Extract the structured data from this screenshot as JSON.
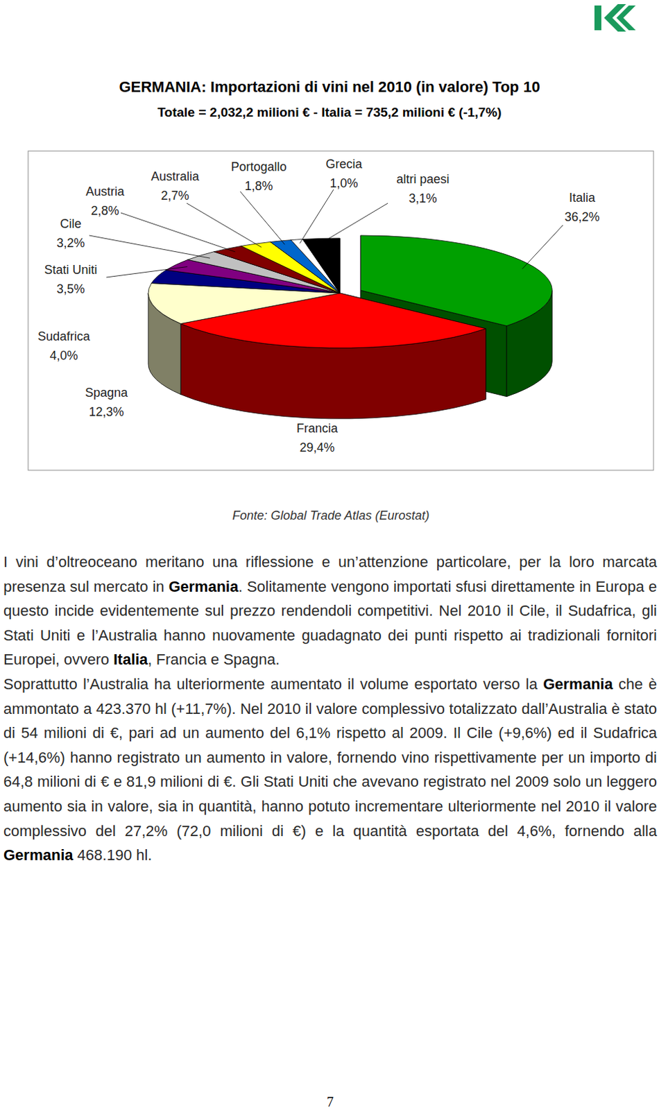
{
  "chart_data": {
    "type": "pie",
    "title": "GERMANIA: Importazioni di vini nel 2010 (in valore) Top 10",
    "subtitle": "Totale = 2,032,2 milioni € - Italia = 735,2 milioni € (-1,7%)",
    "categories": [
      "Italia",
      "Francia",
      "Spagna",
      "Sudafrica",
      "Stati Uniti",
      "Cile",
      "Austria",
      "Australia",
      "Portogallo",
      "Grecia",
      "altri paesi"
    ],
    "values": [
      36.2,
      29.4,
      12.3,
      4.0,
      3.5,
      3.2,
      2.8,
      2.7,
      1.8,
      1.0,
      3.1
    ],
    "value_labels": [
      "36,2%",
      "29,4%",
      "12,3%",
      "4,0%",
      "3,5%",
      "3,2%",
      "2,8%",
      "2,7%",
      "1,8%",
      "1,0%",
      "3,1%"
    ],
    "colors": [
      "#00a000",
      "#ff0000",
      "#ffffcc",
      "#000080",
      "#800080",
      "#c0c0c0",
      "#800000",
      "#ffff00",
      "#0066cc",
      "#ffffff",
      "#000000"
    ],
    "data_labels": true
  },
  "source": "Fonte: Global Trade Atlas (Eurostat)",
  "body": {
    "paragraphs": [
      [
        {
          "text": "I vini d’oltreoceano meritano una riflessione e un’attenzione particolare, per la loro marcata presenza sul mercato in ",
          "bold": false
        },
        {
          "text": "Germania",
          "bold": true
        },
        {
          "text": ". Solitamente vengono importati sfusi direttamente in Europa e questo incide evidentemente sul prezzo rendendoli competitivi. Nel 2010 il Cile, il Sudafrica, gli Stati Uniti e l’Australia hanno nuovamente guadagnato dei punti rispetto ai tradizionali fornitori Europei, ovvero ",
          "bold": false
        },
        {
          "text": "Italia",
          "bold": true
        },
        {
          "text": ", Francia e Spagna.",
          "bold": false
        }
      ],
      [
        {
          "text": "Soprattutto l’Australia ha ulteriormente aumentato il volume esportato verso la ",
          "bold": false
        },
        {
          "text": "Germania",
          "bold": true
        },
        {
          "text": " che è ammontato a 423.370 hl (+11,7%). Nel 2010 il valore complessivo totalizzato dall’Australia è stato di 54 milioni di €, pari ad un aumento del 6,1% rispetto al 2009. Il Cile (+9,6%) ed il Sudafrica (+14,6%) hanno registrato un aumento in valore, fornendo vino rispettivamente per un importo di 64,8 milioni di € e 81,9 milioni di €. Gli Stati Uniti che avevano registrato nel 2009 solo un leggero aumento sia in valore, sia in quantità, hanno potuto incrementare ulteriormente nel 2010 il valore complessivo del 27,2% (72,0 milioni di €) e la quantità esportata del 4,6%, fornendo alla ",
          "bold": false
        },
        {
          "text": "Germania",
          "bold": true
        },
        {
          "text": " 468.190 hl.",
          "bold": false
        }
      ]
    ]
  },
  "page_number": "7"
}
